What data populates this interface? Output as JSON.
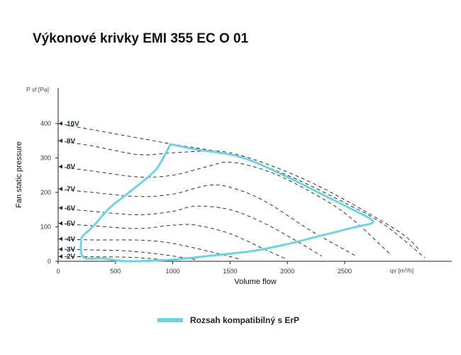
{
  "chart_data": {
    "type": "line",
    "title": "Výkonové krivky EMI 355 EC O 01",
    "xlabel": "Volume flow",
    "ylabel": "Fan static pressure",
    "x_unit_label": "qv [m³/h]",
    "y_unit_label": "P sf [Pa]",
    "xlim": [
      0,
      3400
    ],
    "ylim": [
      0,
      500
    ],
    "x_ticks": [
      0,
      500,
      1000,
      1500,
      2000,
      2500
    ],
    "y_ticks": [
      0,
      100,
      200,
      300,
      400
    ],
    "grid": false,
    "legend_position": "bottom-center",
    "series": [
      {
        "name": "10V",
        "x": [
          0,
          500,
          1000,
          1500,
          2000,
          2500,
          2850,
          3200
        ],
        "y": [
          400,
          370,
          340,
          310,
          250,
          170,
          105,
          10
        ]
      },
      {
        "name": "9V",
        "x": [
          0,
          300,
          700,
          1000,
          1300,
          1500,
          1800,
          2200,
          2600,
          3000,
          3160
        ],
        "y": [
          350,
          335,
          310,
          315,
          320,
          315,
          285,
          230,
          160,
          80,
          30
        ]
      },
      {
        "name": "8V",
        "x": [
          0,
          300,
          700,
          1000,
          1300,
          1500,
          1800,
          2100,
          2500,
          2900
        ],
        "y": [
          275,
          262,
          245,
          250,
          275,
          288,
          265,
          220,
          140,
          20
        ]
      },
      {
        "name": "7V",
        "x": [
          0,
          300,
          700,
          1000,
          1300,
          1500,
          1800,
          2200,
          2600
        ],
        "y": [
          210,
          200,
          188,
          195,
          220,
          215,
          175,
          90,
          15
        ]
      },
      {
        "name": "6V",
        "x": [
          0,
          300,
          700,
          1000,
          1200,
          1500,
          1800,
          2100,
          2300
        ],
        "y": [
          155,
          145,
          135,
          145,
          160,
          150,
          110,
          55,
          15
        ]
      },
      {
        "name": "5V",
        "x": [
          0,
          300,
          700,
          1000,
          1200,
          1500,
          1800,
          2000
        ],
        "y": [
          110,
          103,
          95,
          105,
          105,
          80,
          35,
          5
        ]
      },
      {
        "name": "4V",
        "x": [
          0,
          300,
          600,
          800,
          1000,
          1300,
          1600
        ],
        "y": [
          65,
          62,
          62,
          60,
          52,
          30,
          5
        ]
      },
      {
        "name": "3V",
        "x": [
          0,
          300,
          600,
          900,
          1200
        ],
        "y": [
          35,
          33,
          30,
          20,
          5
        ]
      },
      {
        "name": "2V",
        "x": [
          0,
          300,
          600,
          800,
          950
        ],
        "y": [
          14,
          13,
          12,
          8,
          3
        ]
      }
    ],
    "erp_region": {
      "name": "Rozsah kompatibilný s ErP",
      "color": "#6fd3e3",
      "x": [
        980,
        1200,
        1500,
        1700,
        2000,
        2300,
        2600,
        2750,
        2600,
        2300,
        2000,
        1700,
        1300,
        1000,
        600,
        400,
        220,
        200,
        220,
        300,
        450,
        600,
        750,
        850,
        900,
        940,
        980
      ],
      "y": [
        340,
        325,
        310,
        290,
        245,
        195,
        145,
        115,
        100,
        75,
        50,
        30,
        15,
        5,
        0,
        8,
        12,
        60,
        75,
        100,
        155,
        195,
        235,
        265,
        290,
        315,
        340
      ]
    }
  },
  "legend": {
    "label": "Rozsah kompatibilný s ErP"
  }
}
